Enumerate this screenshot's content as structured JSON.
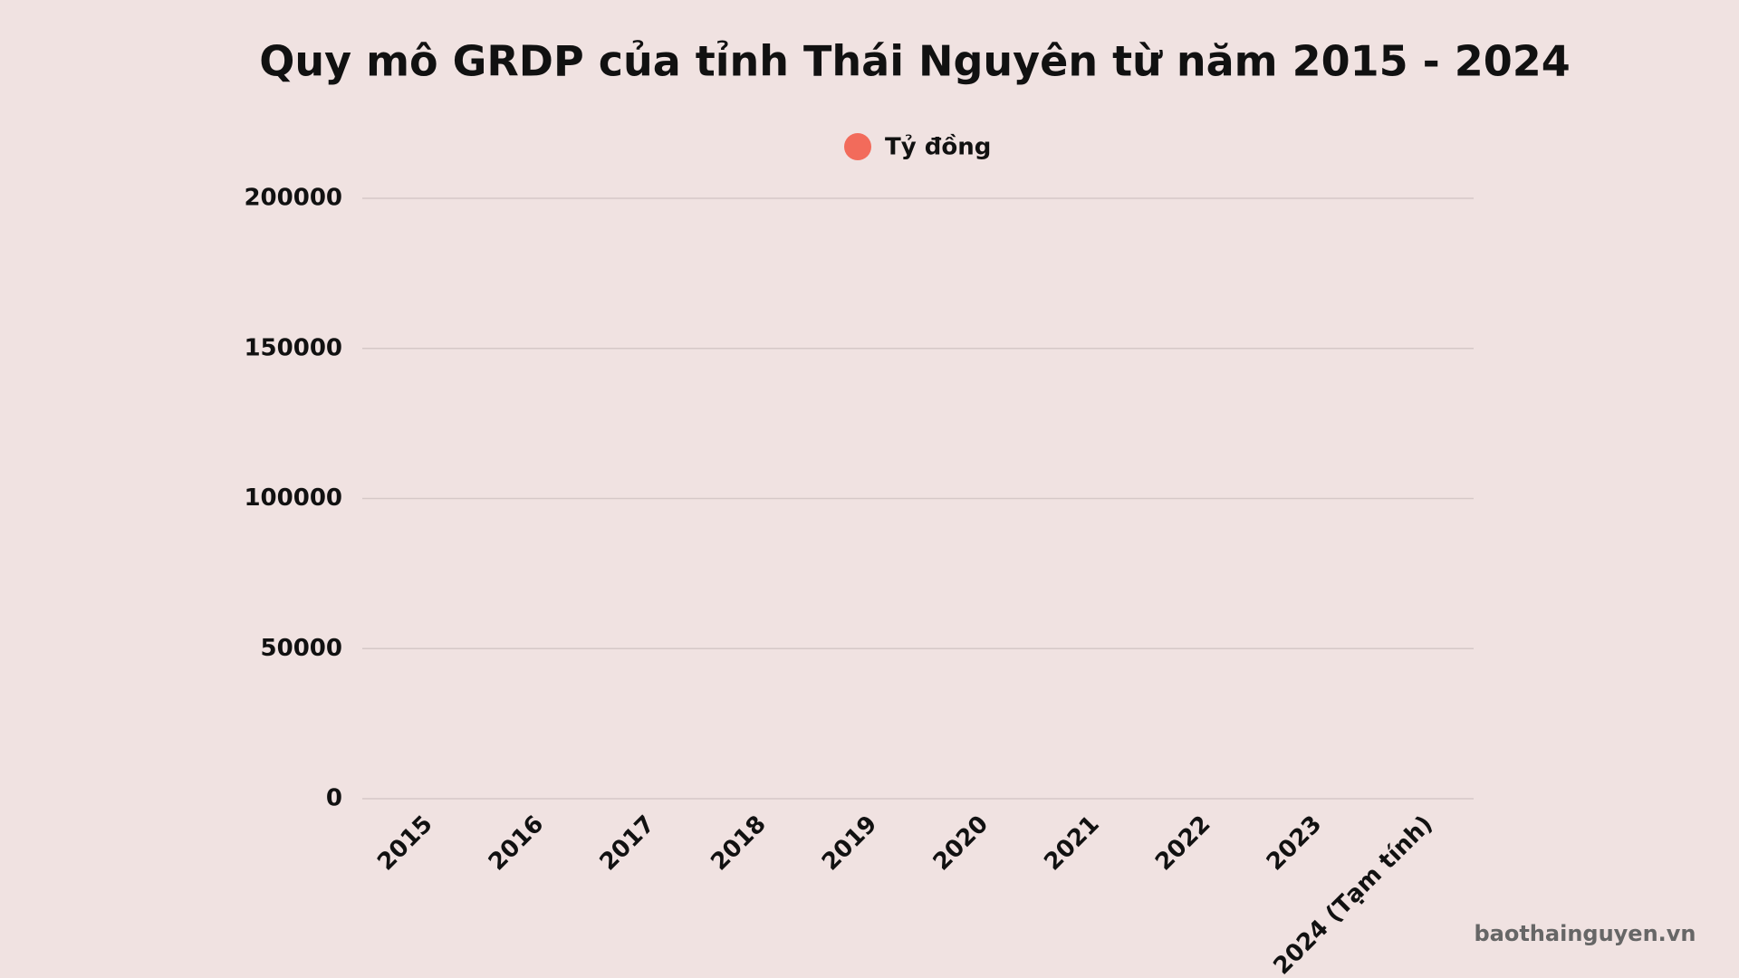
{
  "chart_data": {
    "type": "bar",
    "title": "Quy mô GRDP của tỉnh Thái Nguyên từ năm 2015 - 2024",
    "categories": [
      "2015",
      "2016",
      "2017",
      "2018",
      "2019",
      "2020",
      "2021",
      "2022",
      "2023",
      "2024 (Tạm tính)"
    ],
    "series": [
      {
        "name": "Tỷ đồng",
        "color": "#f26b5b",
        "values": [
          null,
          null,
          null,
          null,
          null,
          null,
          null,
          null,
          null,
          null
        ]
      }
    ],
    "ylim": [
      0,
      200000
    ],
    "yticks": [
      0,
      50000,
      100000,
      150000,
      200000
    ],
    "grid": true,
    "legend": "top",
    "source": "baothainguyen.vn"
  }
}
